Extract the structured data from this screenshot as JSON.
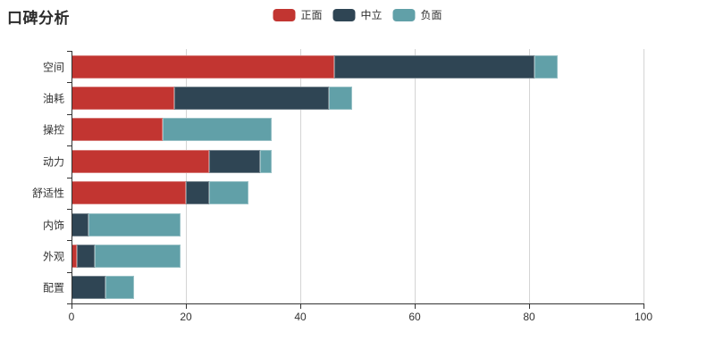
{
  "title": "口碑分析",
  "chart_data": {
    "type": "bar",
    "orientation": "horizontal",
    "stacked": true,
    "title": "口碑分析",
    "categories": [
      "空间",
      "油耗",
      "操控",
      "动力",
      "舒适性",
      "内饰",
      "外观",
      "配置"
    ],
    "series": [
      {
        "name": "正面",
        "color": "#c23531",
        "values": [
          46,
          18,
          16,
          24,
          20,
          0,
          1,
          0
        ]
      },
      {
        "name": "中立",
        "color": "#2f4554",
        "values": [
          35,
          27,
          0,
          9,
          4,
          3,
          3,
          6
        ]
      },
      {
        "name": "负面",
        "color": "#61a0a8",
        "values": [
          4,
          4,
          19,
          2,
          7,
          16,
          15,
          5
        ]
      }
    ],
    "xlabel": "",
    "ylabel": "",
    "xlim": [
      0,
      100
    ],
    "x_ticks": [
      0,
      20,
      40,
      60,
      80,
      100
    ],
    "grid": true,
    "legend_position": "top-center",
    "legend_labels": [
      "正面",
      "中立",
      "负面"
    ]
  }
}
